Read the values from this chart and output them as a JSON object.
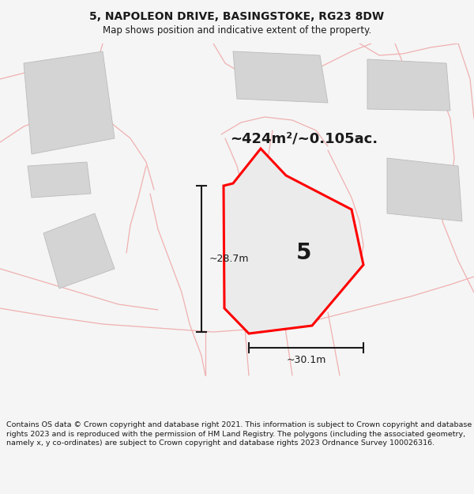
{
  "title": "5, NAPOLEON DRIVE, BASINGSTOKE, RG23 8DW",
  "subtitle": "Map shows position and indicative extent of the property.",
  "footer": "Contains OS data © Crown copyright and database right 2021. This information is subject to Crown copyright and database rights 2023 and is reproduced with the permission of HM Land Registry. The polygons (including the associated geometry, namely x, y co-ordinates) are subject to Crown copyright and database rights 2023 Ordnance Survey 100026316.",
  "area_label": "~424m²/~0.105ac.",
  "number_label": "5",
  "dim_width": "~30.1m",
  "dim_height": "~28.7m",
  "bg_color": "#f5f5f5",
  "map_bg": "#ffffff",
  "plot_edge_color": "#ff0000",
  "road_color": "#f0b0b0",
  "building_color": "#d4d4d4",
  "fig_width": 6.0,
  "fig_height": 6.25,
  "title_fontsize": 10,
  "subtitle_fontsize": 8.5,
  "footer_fontsize": 6.8
}
